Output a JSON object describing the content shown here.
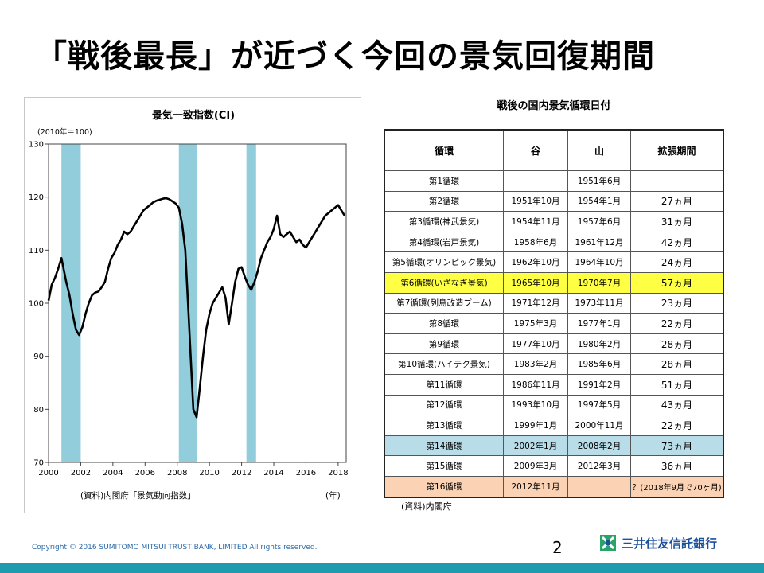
{
  "slide": {
    "title": "「戦後最長」が近づく今回の景気回復期間",
    "page_number": "2",
    "copyright": "Copyright © 2016 SUMITOMO  MITSUI  TRUST  BANK, LIMITED   All rights reserved.",
    "logo_text": "三井住友信託銀行",
    "colors": {
      "accent_bar": "#1f9bb0",
      "recession_band": "#92cddc",
      "line": "#000000",
      "logo_green": "#29a36a",
      "logo_blue": "#1a4f9c"
    }
  },
  "chart_data": {
    "type": "line",
    "title": "景気一致指数(CI)",
    "ylabel": "(2010年＝100)",
    "xlabel": "(年)",
    "source": "(資料)内閣府「景気動向指数」",
    "ylim": [
      70,
      130
    ],
    "y_ticks": [
      70,
      80,
      90,
      100,
      110,
      120,
      130
    ],
    "xlim": [
      2000,
      2018.5
    ],
    "x_ticks": [
      2000,
      2002,
      2004,
      2006,
      2008,
      2010,
      2012,
      2014,
      2016,
      2018
    ],
    "recession_bands": [
      [
        2000.8,
        2002.0
      ],
      [
        2008.1,
        2009.2
      ],
      [
        2012.3,
        2012.9
      ]
    ],
    "series": [
      {
        "x": [
          2000.0,
          2000.2,
          2000.4,
          2000.6,
          2000.8,
          2000.9,
          2001.1,
          2001.3,
          2001.5,
          2001.7,
          2001.9,
          2002.1,
          2002.3,
          2002.5,
          2002.7,
          2002.9,
          2003.1,
          2003.3,
          2003.5,
          2003.7,
          2003.9,
          2004.1,
          2004.3,
          2004.5,
          2004.7,
          2004.9,
          2005.1,
          2005.3,
          2005.5,
          2005.7,
          2005.9,
          2006.1,
          2006.3,
          2006.5,
          2006.7,
          2006.9,
          2007.1,
          2007.3,
          2007.5,
          2007.7,
          2007.9,
          2008.1,
          2008.3,
          2008.5,
          2008.7,
          2008.9,
          2009.0,
          2009.2,
          2009.4,
          2009.6,
          2009.8,
          2010.0,
          2010.2,
          2010.4,
          2010.6,
          2010.8,
          2011.0,
          2011.2,
          2011.4,
          2011.6,
          2011.8,
          2012.0,
          2012.2,
          2012.4,
          2012.6,
          2012.8,
          2013.0,
          2013.2,
          2013.4,
          2013.6,
          2013.8,
          2014.0,
          2014.2,
          2014.4,
          2014.6,
          2014.8,
          2015.0,
          2015.2,
          2015.4,
          2015.6,
          2015.8,
          2016.0,
          2016.2,
          2016.4,
          2016.6,
          2016.8,
          2017.0,
          2017.2,
          2017.4,
          2017.6,
          2017.8,
          2018.0,
          2018.2,
          2018.4
        ],
        "values": [
          100.5,
          103.5,
          104.8,
          106.5,
          108.5,
          107.0,
          104.0,
          101.5,
          98.0,
          95.0,
          94.0,
          95.5,
          98.0,
          100.0,
          101.5,
          102.0,
          102.2,
          103.0,
          104.0,
          106.5,
          108.5,
          109.5,
          111.0,
          112.0,
          113.5,
          113.0,
          113.5,
          114.5,
          115.5,
          116.5,
          117.5,
          118.0,
          118.5,
          119.0,
          119.3,
          119.5,
          119.7,
          119.8,
          119.6,
          119.2,
          118.8,
          118.0,
          115.0,
          110.0,
          98.0,
          86.0,
          80.0,
          78.5,
          84.0,
          90.0,
          95.0,
          98.0,
          100.0,
          101.0,
          102.0,
          103.0,
          101.0,
          96.0,
          100.0,
          104.0,
          106.5,
          106.8,
          105.0,
          103.5,
          102.5,
          104.0,
          106.0,
          108.5,
          110.0,
          111.5,
          112.5,
          114.0,
          116.5,
          113.0,
          112.5,
          113.0,
          113.5,
          112.5,
          111.5,
          112.0,
          111.0,
          110.5,
          111.5,
          112.5,
          113.5,
          114.5,
          115.5,
          116.5,
          117.0,
          117.5,
          118.0,
          118.5,
          117.5,
          116.5
        ]
      }
    ]
  },
  "table": {
    "title": "戦後の国内景気循環日付",
    "headers": [
      "循環",
      "谷",
      "山",
      "拡張期間"
    ],
    "rows": [
      {
        "cycle": "第1循環",
        "trough": "",
        "peak": "1951年6月",
        "duration": "",
        "hl": ""
      },
      {
        "cycle": "第2循環",
        "trough": "1951年10月",
        "peak": "1954年1月",
        "duration": "27ヵ月",
        "hl": ""
      },
      {
        "cycle": "第3循環(神武景気)",
        "trough": "1954年11月",
        "peak": "1957年6月",
        "duration": "31ヵ月",
        "hl": ""
      },
      {
        "cycle": "第4循環(岩戸景気)",
        "trough": "1958年6月",
        "peak": "1961年12月",
        "duration": "42ヵ月",
        "hl": ""
      },
      {
        "cycle": "第5循環(オリンピック景気)",
        "trough": "1962年10月",
        "peak": "1964年10月",
        "duration": "24ヵ月",
        "hl": ""
      },
      {
        "cycle": "第6循環(いざなぎ景気)",
        "trough": "1965年10月",
        "peak": "1970年7月",
        "duration": "57ヵ月",
        "hl": "yellow"
      },
      {
        "cycle": "第7循環(列島改造ブーム)",
        "trough": "1971年12月",
        "peak": "1973年11月",
        "duration": "23ヵ月",
        "hl": ""
      },
      {
        "cycle": "第8循環",
        "trough": "1975年3月",
        "peak": "1977年1月",
        "duration": "22ヵ月",
        "hl": ""
      },
      {
        "cycle": "第9循環",
        "trough": "1977年10月",
        "peak": "1980年2月",
        "duration": "28ヵ月",
        "hl": ""
      },
      {
        "cycle": "第10循環(ハイテク景気)",
        "trough": "1983年2月",
        "peak": "1985年6月",
        "duration": "28ヵ月",
        "hl": ""
      },
      {
        "cycle": "第11循環",
        "trough": "1986年11月",
        "peak": "1991年2月",
        "duration": "51ヵ月",
        "hl": ""
      },
      {
        "cycle": "第12循環",
        "trough": "1993年10月",
        "peak": "1997年5月",
        "duration": "43ヵ月",
        "hl": ""
      },
      {
        "cycle": "第13循環",
        "trough": "1999年1月",
        "peak": "2000年11月",
        "duration": "22ヵ月",
        "hl": ""
      },
      {
        "cycle": "第14循環",
        "trough": "2002年1月",
        "peak": "2008年2月",
        "duration": "73ヵ月",
        "hl": "blue"
      },
      {
        "cycle": "第15循環",
        "trough": "2009年3月",
        "peak": "2012年3月",
        "duration": "36ヵ月",
        "hl": ""
      },
      {
        "cycle": "第16循環",
        "trough": "2012年11月",
        "peak": "",
        "duration": "？(2018年9月で70ヶ月)",
        "hl": "orange"
      }
    ],
    "source": "(資料)内閣府"
  }
}
